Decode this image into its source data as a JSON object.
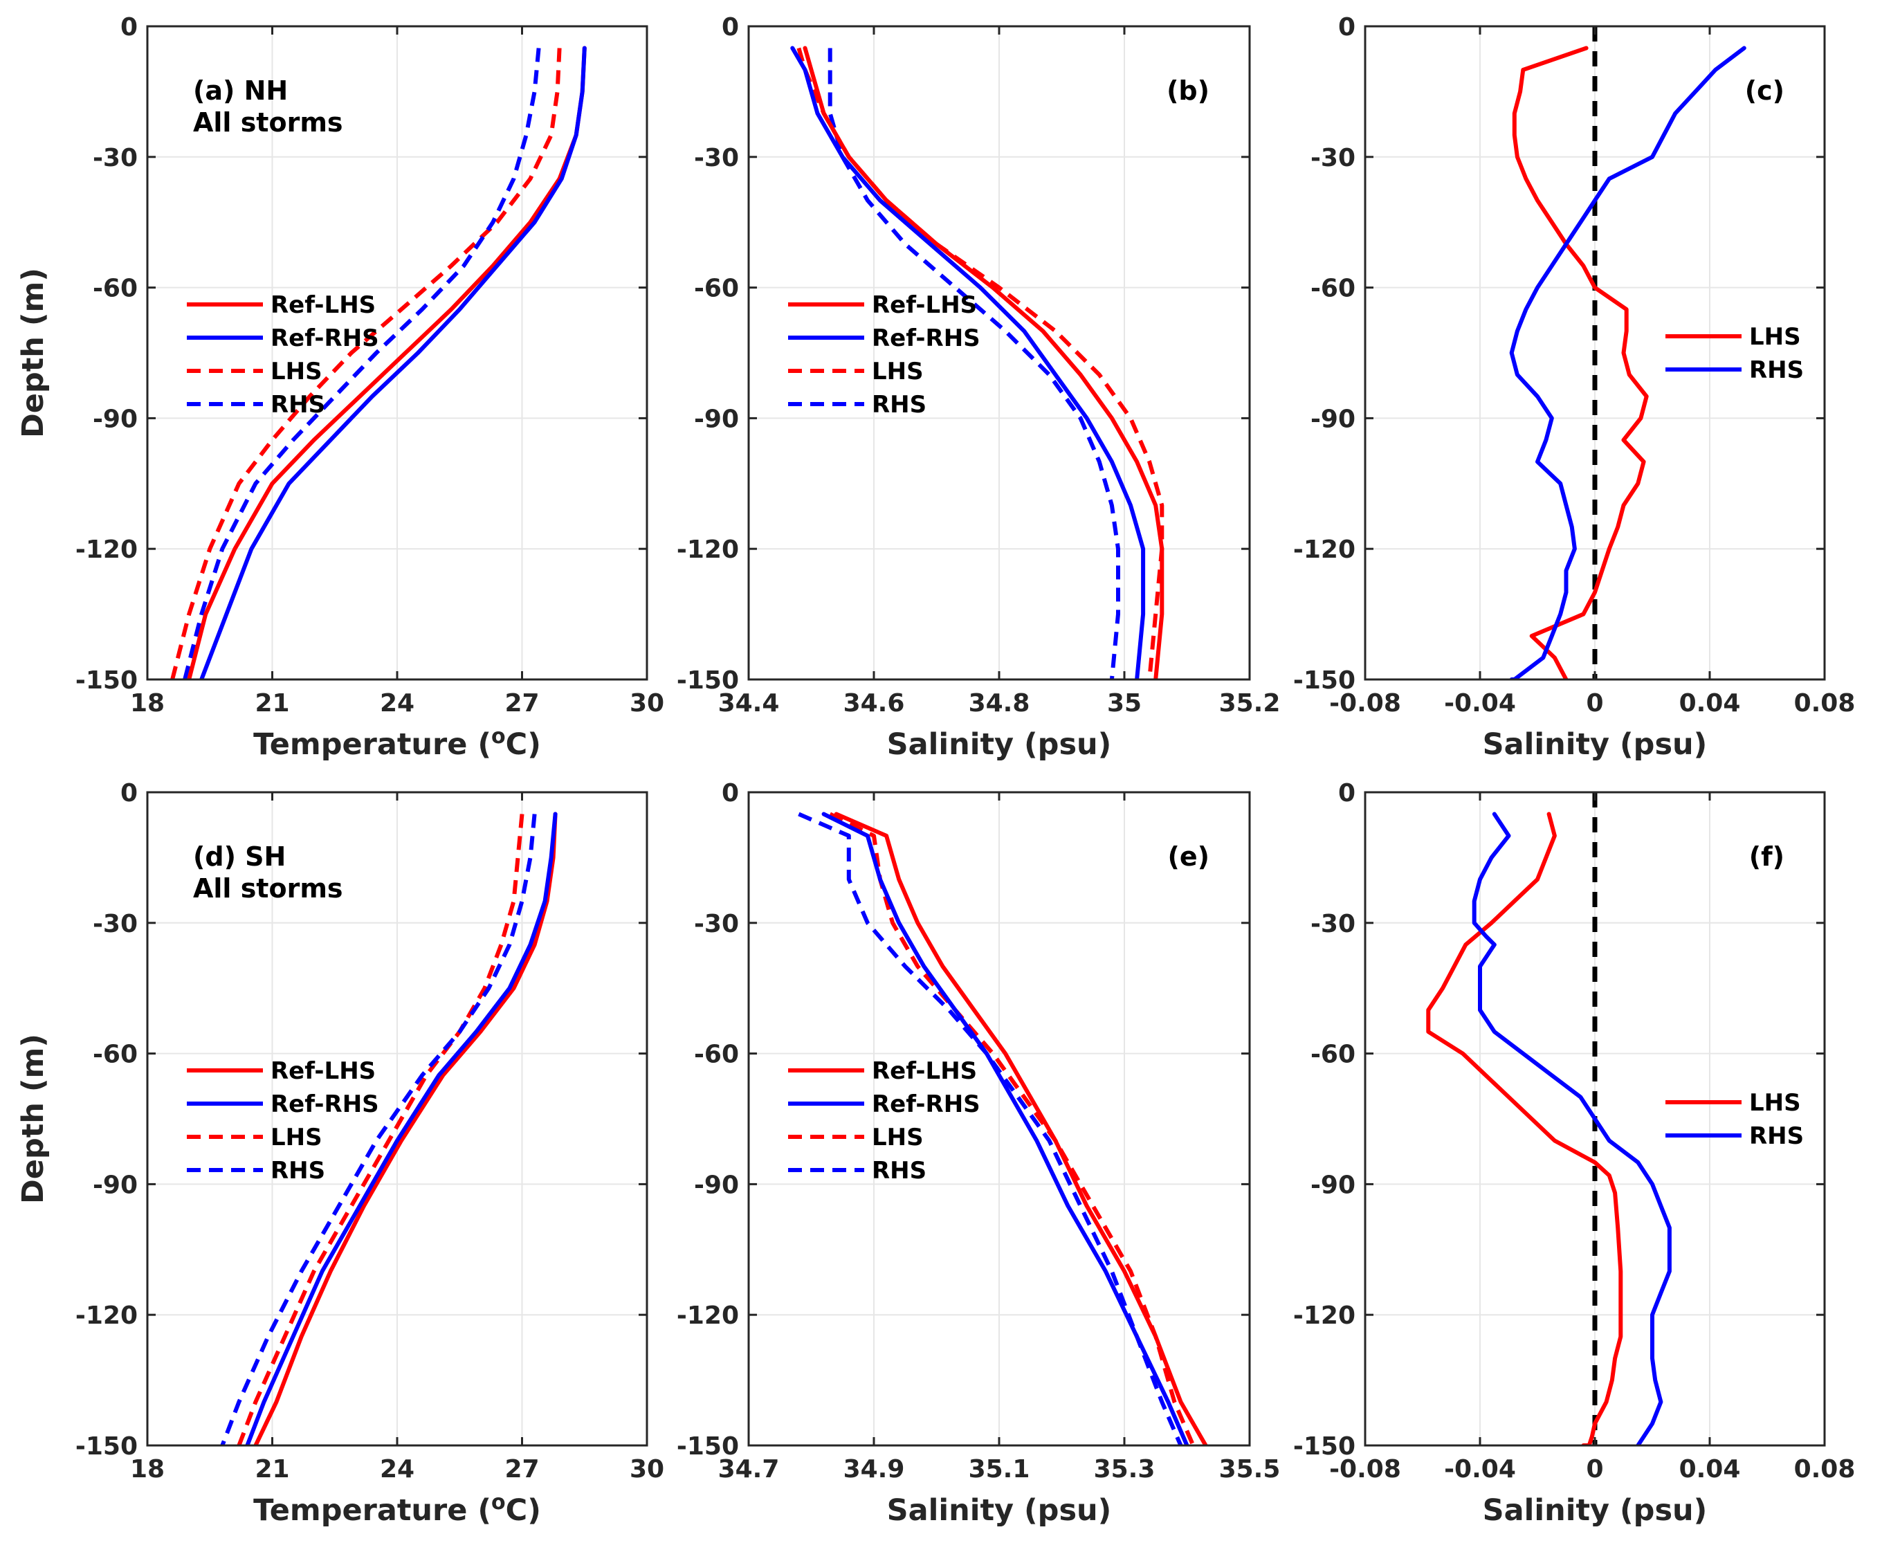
{
  "colors": {
    "lhs": "#ff0000",
    "rhs": "#0000ff",
    "zero_line": "#000000",
    "axis": "#262626",
    "grid": "#e6e6e6"
  },
  "chart_data": [
    {
      "panel": "(a)",
      "type": "line",
      "annot": [
        "(a) NH",
        "All storms"
      ],
      "xlabel": "Temperature (",
      "xlabel_unit_sup": "o",
      "xlabel_unit_tail": "C)",
      "ylabel": "Depth (m)",
      "xlim": [
        18,
        30
      ],
      "xticks": [
        18,
        21,
        24,
        27,
        30
      ],
      "ylim": [
        -150,
        0
      ],
      "yticks": [
        0,
        -30,
        -60,
        -90,
        -120,
        -150
      ],
      "legend": [
        "Ref-LHS",
        "Ref-RHS",
        "LHS",
        "RHS"
      ],
      "legend_position": "center-left",
      "series": [
        {
          "name": "Ref-LHS",
          "style": "solid",
          "color": "red",
          "x": [
            28.5,
            28.45,
            28.3,
            27.9,
            27.2,
            26.3,
            25.3,
            24.2,
            23.1,
            22.0,
            21.0,
            20.1,
            19.4,
            19.0
          ],
          "y": [
            -5,
            -15,
            -25,
            -35,
            -45,
            -55,
            -65,
            -75,
            -85,
            -95,
            -105,
            -120,
            -135,
            -150
          ]
        },
        {
          "name": "Ref-RHS",
          "style": "solid",
          "color": "blue",
          "x": [
            28.5,
            28.45,
            28.3,
            27.95,
            27.3,
            26.4,
            25.5,
            24.5,
            23.4,
            22.4,
            21.4,
            20.5,
            19.9,
            19.3
          ],
          "y": [
            -5,
            -15,
            -25,
            -35,
            -45,
            -55,
            -65,
            -75,
            -85,
            -95,
            -105,
            -120,
            -135,
            -150
          ]
        },
        {
          "name": "LHS",
          "style": "dashed",
          "color": "red",
          "x": [
            27.9,
            27.85,
            27.7,
            27.2,
            26.4,
            25.3,
            24.1,
            22.9,
            21.9,
            21.0,
            20.2,
            19.5,
            19.0,
            18.6
          ],
          "y": [
            -5,
            -15,
            -25,
            -35,
            -45,
            -55,
            -65,
            -75,
            -85,
            -95,
            -105,
            -120,
            -135,
            -150
          ]
        },
        {
          "name": "RHS",
          "style": "dashed",
          "color": "blue",
          "x": [
            27.4,
            27.3,
            27.1,
            26.8,
            26.3,
            25.6,
            24.6,
            23.5,
            22.5,
            21.5,
            20.6,
            19.8,
            19.3,
            18.9
          ],
          "y": [
            -5,
            -15,
            -25,
            -35,
            -45,
            -55,
            -65,
            -75,
            -85,
            -95,
            -105,
            -120,
            -135,
            -150
          ]
        }
      ]
    },
    {
      "panel": "(b)",
      "type": "line",
      "annot": [
        "(b)"
      ],
      "xlabel": "Salinity (psu)",
      "ylabel": "",
      "xlim": [
        34.4,
        35.2
      ],
      "xticks": [
        34.4,
        34.6,
        34.8,
        35,
        35.2
      ],
      "xtick_labels": [
        "34.4",
        "34.6",
        "34.8",
        "35",
        "35.2"
      ],
      "ylim": [
        -150,
        0
      ],
      "yticks": [
        0,
        -30,
        -60,
        -90,
        -120,
        -150
      ],
      "legend": [
        "Ref-LHS",
        "Ref-RHS",
        "LHS",
        "RHS"
      ],
      "legend_position": "center-left",
      "series": [
        {
          "name": "Ref-LHS",
          "style": "solid",
          "color": "red",
          "x": [
            34.49,
            34.5,
            34.52,
            34.56,
            34.62,
            34.7,
            34.79,
            34.87,
            34.93,
            34.98,
            35.02,
            35.05,
            35.06,
            35.06,
            35.05
          ],
          "y": [
            -5,
            -10,
            -20,
            -30,
            -40,
            -50,
            -60,
            -70,
            -80,
            -90,
            -100,
            -110,
            -120,
            -135,
            -150
          ]
        },
        {
          "name": "Ref-RHS",
          "style": "solid",
          "color": "blue",
          "x": [
            34.47,
            34.49,
            34.51,
            34.55,
            34.61,
            34.69,
            34.77,
            34.84,
            34.89,
            34.94,
            34.98,
            35.01,
            35.03,
            35.03,
            35.02
          ],
          "y": [
            -5,
            -10,
            -20,
            -30,
            -40,
            -50,
            -60,
            -70,
            -80,
            -90,
            -100,
            -110,
            -120,
            -135,
            -150
          ]
        },
        {
          "name": "LHS",
          "style": "dashed",
          "color": "red",
          "x": [
            34.48,
            34.49,
            34.52,
            34.56,
            34.62,
            34.7,
            34.8,
            34.89,
            34.96,
            35.01,
            35.04,
            35.06,
            35.06,
            35.05,
            35.04
          ],
          "y": [
            -5,
            -10,
            -20,
            -30,
            -40,
            -50,
            -60,
            -70,
            -80,
            -90,
            -100,
            -110,
            -120,
            -135,
            -150
          ]
        },
        {
          "name": "RHS",
          "style": "dashed",
          "color": "blue",
          "x": [
            34.53,
            34.53,
            34.53,
            34.55,
            34.59,
            34.65,
            34.73,
            34.81,
            34.88,
            34.93,
            34.96,
            34.98,
            34.99,
            34.99,
            34.98
          ],
          "y": [
            -5,
            -10,
            -20,
            -30,
            -40,
            -50,
            -60,
            -70,
            -80,
            -90,
            -100,
            -110,
            -120,
            -135,
            -150
          ]
        }
      ]
    },
    {
      "panel": "(c)",
      "type": "line",
      "annot": [
        "(c)"
      ],
      "xlabel": "Salinity (psu)",
      "ylabel": "",
      "xlim": [
        -0.08,
        0.08
      ],
      "xticks": [
        -0.08,
        -0.04,
        0,
        0.04,
        0.08
      ],
      "xtick_labels": [
        "-0.08",
        "-0.04",
        "0",
        "0.04",
        "0.08"
      ],
      "ylim": [
        -150,
        0
      ],
      "yticks": [
        0,
        -30,
        -60,
        -90,
        -120,
        -150
      ],
      "zero_line": true,
      "legend": [
        "LHS",
        "RHS"
      ],
      "legend_position": "center-right",
      "series": [
        {
          "name": "LHS",
          "style": "solid",
          "color": "red",
          "x": [
            -0.003,
            -0.025,
            -0.026,
            -0.028,
            -0.028,
            -0.027,
            -0.024,
            -0.02,
            -0.015,
            -0.01,
            -0.004,
            0.0,
            0.011,
            0.011,
            0.01,
            0.012,
            0.018,
            0.016,
            0.01,
            0.017,
            0.015,
            0.01,
            0.008,
            0.005,
            0.0,
            -0.004,
            -0.022,
            -0.014,
            -0.01
          ],
          "y": [
            -5,
            -10,
            -15,
            -20,
            -25,
            -30,
            -35,
            -40,
            -45,
            -50,
            -55,
            -60,
            -65,
            -70,
            -75,
            -80,
            -85,
            -90,
            -95,
            -100,
            -105,
            -110,
            -115,
            -120,
            -130,
            -135,
            -140,
            -145,
            -150
          ]
        },
        {
          "name": "RHS",
          "style": "solid",
          "color": "blue",
          "x": [
            0.052,
            0.042,
            0.035,
            0.028,
            0.024,
            0.02,
            0.005,
            0.0,
            -0.005,
            -0.01,
            -0.015,
            -0.02,
            -0.024,
            -0.027,
            -0.029,
            -0.027,
            -0.02,
            -0.015,
            -0.017,
            -0.02,
            -0.012,
            -0.01,
            -0.008,
            -0.007,
            -0.01,
            -0.01,
            -0.012,
            -0.015,
            -0.018,
            -0.028,
            -0.028,
            -0.029
          ],
          "y": [
            -5,
            -10,
            -15,
            -20,
            -25,
            -30,
            -35,
            -40,
            -45,
            -50,
            -55,
            -60,
            -65,
            -70,
            -75,
            -80,
            -85,
            -90,
            -95,
            -100,
            -105,
            -110,
            -115,
            -120,
            -125,
            -130,
            -135,
            -140,
            -145,
            -150,
            -150,
            -150
          ]
        }
      ]
    },
    {
      "panel": "(d)",
      "type": "line",
      "annot": [
        "(d) SH",
        "All storms"
      ],
      "xlabel": "Temperature (",
      "xlabel_unit_sup": "o",
      "xlabel_unit_tail": "C)",
      "ylabel": "Depth (m)",
      "xlim": [
        18,
        30
      ],
      "xticks": [
        18,
        21,
        24,
        27,
        30
      ],
      "ylim": [
        -150,
        0
      ],
      "yticks": [
        0,
        -30,
        -60,
        -90,
        -120,
        -150
      ],
      "legend": [
        "Ref-LHS",
        "Ref-RHS",
        "LHS",
        "RHS"
      ],
      "legend_position": "center-left",
      "series": [
        {
          "name": "Ref-LHS",
          "style": "solid",
          "color": "red",
          "x": [
            27.8,
            27.75,
            27.6,
            27.3,
            26.8,
            26.0,
            25.1,
            24.1,
            23.2,
            22.4,
            21.7,
            21.1,
            20.6
          ],
          "y": [
            -5,
            -15,
            -25,
            -35,
            -45,
            -55,
            -65,
            -80,
            -95,
            -110,
            -125,
            -140,
            -150
          ]
        },
        {
          "name": "Ref-RHS",
          "style": "solid",
          "color": "blue",
          "x": [
            27.8,
            27.7,
            27.55,
            27.2,
            26.7,
            25.9,
            25.0,
            24.0,
            23.1,
            22.2,
            21.5,
            20.8,
            20.4
          ],
          "y": [
            -5,
            -15,
            -25,
            -35,
            -45,
            -55,
            -65,
            -80,
            -95,
            -110,
            -125,
            -140,
            -150
          ]
        },
        {
          "name": "LHS",
          "style": "dashed",
          "color": "red",
          "x": [
            27.0,
            26.9,
            26.8,
            26.5,
            26.1,
            25.5,
            24.7,
            23.8,
            22.9,
            22.0,
            21.3,
            20.6,
            20.2
          ],
          "y": [
            -5,
            -15,
            -25,
            -35,
            -45,
            -55,
            -65,
            -80,
            -95,
            -110,
            -125,
            -140,
            -150
          ]
        },
        {
          "name": "RHS",
          "style": "dashed",
          "color": "blue",
          "x": [
            27.3,
            27.2,
            27.0,
            26.7,
            26.2,
            25.5,
            24.6,
            23.5,
            22.6,
            21.7,
            20.9,
            20.2,
            19.8
          ],
          "y": [
            -5,
            -15,
            -25,
            -35,
            -45,
            -55,
            -65,
            -80,
            -95,
            -110,
            -125,
            -140,
            -150
          ]
        }
      ]
    },
    {
      "panel": "(e)",
      "type": "line",
      "annot": [
        "(e)"
      ],
      "xlabel": "Salinity (psu)",
      "ylabel": "",
      "xlim": [
        34.7,
        35.5
      ],
      "xticks": [
        34.7,
        34.9,
        35.1,
        35.3,
        35.5
      ],
      "xtick_labels": [
        "34.7",
        "34.9",
        "35.1",
        "35.3",
        "35.5"
      ],
      "ylim": [
        -150,
        0
      ],
      "yticks": [
        0,
        -30,
        -60,
        -90,
        -120,
        -150
      ],
      "legend": [
        "Ref-LHS",
        "Ref-RHS",
        "LHS",
        "RHS"
      ],
      "legend_position": "center-left",
      "series": [
        {
          "name": "Ref-LHS",
          "style": "solid",
          "color": "red",
          "x": [
            34.84,
            34.92,
            34.94,
            34.97,
            35.01,
            35.06,
            35.11,
            35.15,
            35.19,
            35.24,
            35.3,
            35.35,
            35.39,
            35.43
          ],
          "y": [
            -5,
            -10,
            -20,
            -30,
            -40,
            -50,
            -60,
            -70,
            -80,
            -95,
            -110,
            -125,
            -140,
            -150
          ]
        },
        {
          "name": "Ref-RHS",
          "style": "solid",
          "color": "blue",
          "x": [
            34.82,
            34.89,
            34.91,
            34.94,
            34.98,
            35.03,
            35.08,
            35.12,
            35.16,
            35.21,
            35.27,
            35.32,
            35.37,
            35.4
          ],
          "y": [
            -5,
            -10,
            -20,
            -30,
            -40,
            -50,
            -60,
            -70,
            -80,
            -95,
            -110,
            -125,
            -140,
            -150
          ]
        },
        {
          "name": "LHS",
          "style": "dashed",
          "color": "red",
          "x": [
            34.83,
            34.9,
            34.91,
            34.93,
            34.97,
            35.03,
            35.09,
            35.14,
            35.19,
            35.25,
            35.31,
            35.35,
            35.38,
            35.41
          ],
          "y": [
            -5,
            -10,
            -20,
            -30,
            -40,
            -50,
            -60,
            -70,
            -80,
            -95,
            -110,
            -125,
            -140,
            -150
          ]
        },
        {
          "name": "RHS",
          "style": "dashed",
          "color": "blue",
          "x": [
            34.78,
            34.86,
            34.86,
            34.89,
            34.95,
            35.02,
            35.08,
            35.13,
            35.18,
            35.23,
            35.28,
            35.32,
            35.36,
            35.39
          ],
          "y": [
            -5,
            -10,
            -20,
            -30,
            -40,
            -50,
            -60,
            -70,
            -80,
            -95,
            -110,
            -125,
            -140,
            -150
          ]
        }
      ]
    },
    {
      "panel": "(f)",
      "type": "line",
      "annot": [
        "(f)"
      ],
      "xlabel": "Salinity (psu)",
      "ylabel": "",
      "xlim": [
        -0.08,
        0.08
      ],
      "xticks": [
        -0.08,
        -0.04,
        0,
        0.04,
        0.08
      ],
      "xtick_labels": [
        "-0.08",
        "-0.04",
        "0",
        "0.04",
        "0.08"
      ],
      "ylim": [
        -150,
        0
      ],
      "yticks": [
        0,
        -30,
        -60,
        -90,
        -120,
        -150
      ],
      "zero_line": true,
      "legend": [
        "LHS",
        "RHS"
      ],
      "legend_position": "center-right",
      "series": [
        {
          "name": "LHS",
          "style": "solid",
          "color": "red",
          "x": [
            -0.016,
            -0.014,
            -0.02,
            -0.028,
            -0.036,
            -0.045,
            -0.053,
            -0.058,
            -0.058,
            -0.046,
            -0.03,
            -0.014,
            0.0,
            0.005,
            0.007,
            0.008,
            0.009,
            0.009,
            0.009,
            0.007,
            0.006,
            0.004,
            0.0,
            -0.001,
            -0.002,
            -0.004
          ],
          "y": [
            -5,
            -10,
            -20,
            -25,
            -30,
            -35,
            -45,
            -50,
            -55,
            -60,
            -70,
            -80,
            -85,
            -88,
            -92,
            -100,
            -110,
            -120,
            -125,
            -130,
            -135,
            -140,
            -145,
            -148,
            -150,
            -150
          ]
        },
        {
          "name": "RHS",
          "style": "solid",
          "color": "blue",
          "x": [
            -0.035,
            -0.03,
            -0.036,
            -0.04,
            -0.042,
            -0.042,
            -0.038,
            -0.035,
            -0.04,
            -0.04,
            -0.04,
            -0.035,
            -0.025,
            -0.015,
            -0.005,
            0.005,
            0.015,
            0.02,
            0.023,
            0.026,
            0.026,
            0.023,
            0.02,
            0.02,
            0.02,
            0.021,
            0.023,
            0.02,
            0.017,
            0.015,
            0.015
          ],
          "y": [
            -5,
            -10,
            -15,
            -20,
            -25,
            -30,
            -33,
            -35,
            -40,
            -45,
            -50,
            -55,
            -60,
            -65,
            -70,
            -80,
            -85,
            -90,
            -95,
            -100,
            -110,
            -115,
            -120,
            -125,
            -130,
            -135,
            -140,
            -145,
            -148,
            -150,
            -150
          ]
        }
      ]
    }
  ]
}
